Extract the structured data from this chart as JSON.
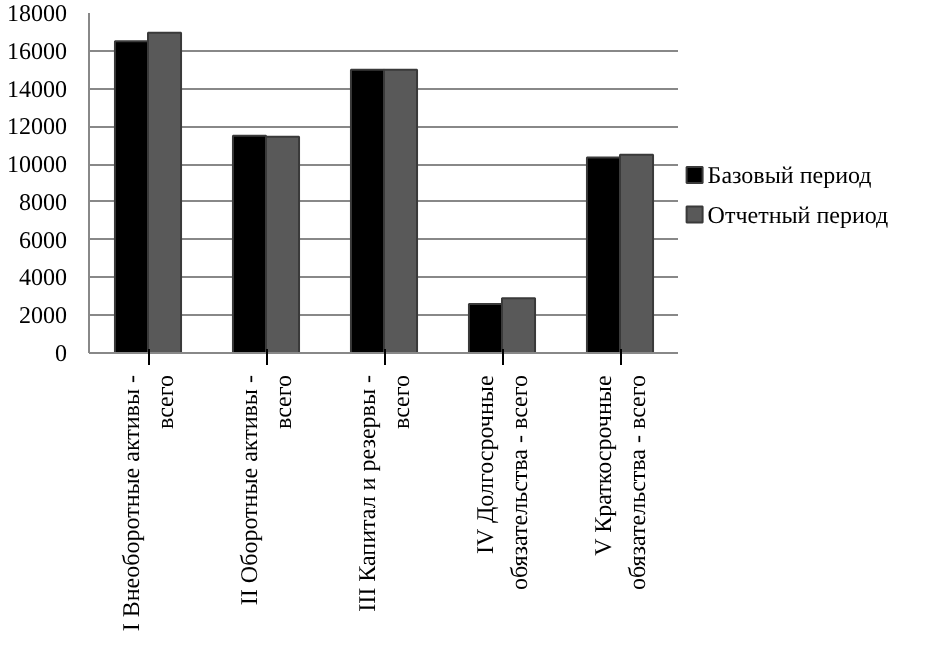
{
  "chart_data": {
    "type": "bar",
    "categories": [
      "I Внеоборотные активы - всего",
      "II Оборотные активы - всего",
      "III Капитал и резервы - всего",
      "IV Долгосрочные обязательства - всего",
      "V Краткосрочные обязательства - всего"
    ],
    "series": [
      {
        "name": "Базовый период",
        "color": "#000000",
        "values": [
          16500,
          11500,
          15000,
          2600,
          10350
        ]
      },
      {
        "name": "Отчетный период",
        "color": "#595959",
        "values": [
          16950,
          11450,
          15000,
          2900,
          10500
        ]
      }
    ],
    "ylim": [
      0,
      18000
    ],
    "yticks": [
      0,
      2000,
      4000,
      6000,
      8000,
      10000,
      12000,
      14000,
      16000,
      18000
    ],
    "grid": "y",
    "legend": "right"
  }
}
